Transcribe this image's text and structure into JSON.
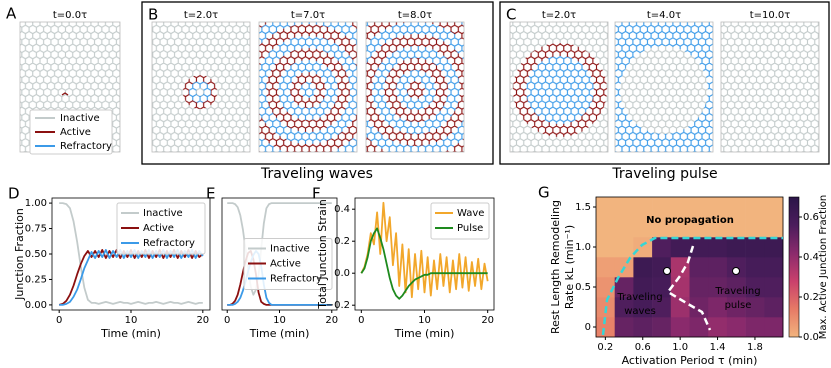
{
  "panels": [
    {
      "label": "A",
      "snapshots": [
        "t=0.0τ"
      ]
    },
    {
      "label": "B",
      "snapshots": [
        "t=2.0τ",
        "t=7.0τ",
        "t=8.0τ"
      ],
      "caption": "Traveling waves"
    },
    {
      "label": "C",
      "snapshots": [
        "t=2.0τ",
        "t=4.0τ",
        "t=10.0τ"
      ],
      "caption": "Traveling pulse"
    }
  ],
  "states": [
    {
      "name": "Inactive",
      "color": "#c3cbcb"
    },
    {
      "name": "Active",
      "color": "#8b1010"
    },
    {
      "name": "Refractory",
      "color": "#3b9ae8"
    }
  ],
  "chart_data": [
    {
      "type": "line",
      "panel_label": "D",
      "xlabel": "Time (min)",
      "ylabel": "Junction Fraction",
      "xlim": [
        -1,
        21
      ],
      "ylim": [
        -0.05,
        1.05
      ],
      "xticks": [
        0,
        10,
        20
      ],
      "yticks": [
        {
          "value": 0,
          "label": "0.00"
        },
        0.25,
        {
          "value": 0.5,
          "label": "0.50"
        },
        0.75,
        {
          "value": 1,
          "label": "1.00"
        }
      ],
      "legend": "upper right",
      "x": [
        0,
        0.5,
        1,
        1.5,
        2,
        2.5,
        3,
        3.5,
        4,
        4.5,
        5,
        5.5,
        6,
        6.5,
        7,
        7.5,
        8,
        8.5,
        9,
        9.5,
        10,
        10.5,
        11,
        11.5,
        12,
        12.5,
        13,
        13.5,
        14,
        14.5,
        15,
        15.5,
        16,
        16.5,
        17,
        17.5,
        18,
        18.5,
        19,
        19.5,
        20
      ],
      "series": [
        {
          "name": "Inactive",
          "color": "#c3cbcb",
          "values": [
            1,
            1,
            0.99,
            0.95,
            0.82,
            0.62,
            0.38,
            0.17,
            0.05,
            0.02,
            0.02,
            0.01,
            0.02,
            0.03,
            0.02,
            0.01,
            0.02,
            0.03,
            0.02,
            0.02,
            0.01,
            0.02,
            0.03,
            0.02,
            0.01,
            0.02,
            0.02,
            0.03,
            0.02,
            0.01,
            0.02,
            0.03,
            0.02,
            0.02,
            0.01,
            0.02,
            0.03,
            0.02,
            0.01,
            0.02,
            0.02
          ]
        },
        {
          "name": "Active",
          "color": "#8b1010",
          "values": [
            0,
            0.01,
            0.04,
            0.1,
            0.19,
            0.3,
            0.4,
            0.48,
            0.53,
            0.47,
            0.53,
            0.47,
            0.54,
            0.46,
            0.53,
            0.47,
            0.54,
            0.46,
            0.53,
            0.47,
            0.54,
            0.46,
            0.53,
            0.47,
            0.54,
            0.46,
            0.53,
            0.47,
            0.54,
            0.46,
            0.53,
            0.47,
            0.54,
            0.46,
            0.53,
            0.47,
            0.54,
            0.46,
            0.53,
            0.47,
            0.5
          ]
        },
        {
          "name": "Refractory",
          "color": "#3b9ae8",
          "values": [
            0,
            0,
            0.01,
            0.03,
            0.08,
            0.15,
            0.25,
            0.36,
            0.44,
            0.52,
            0.46,
            0.53,
            0.47,
            0.54,
            0.46,
            0.53,
            0.47,
            0.54,
            0.46,
            0.53,
            0.47,
            0.54,
            0.46,
            0.53,
            0.47,
            0.54,
            0.46,
            0.53,
            0.47,
            0.54,
            0.46,
            0.53,
            0.47,
            0.54,
            0.46,
            0.53,
            0.47,
            0.54,
            0.46,
            0.53,
            0.48
          ]
        }
      ]
    },
    {
      "type": "line",
      "panel_label": "E",
      "xlabel": "Time (min)",
      "xlim": [
        -1,
        21
      ],
      "ylim": [
        -0.05,
        1.05
      ],
      "xticks": [
        0,
        10,
        20
      ],
      "legend": "center right",
      "x": [
        0,
        0.5,
        1,
        1.5,
        2,
        2.5,
        3,
        3.5,
        4,
        4.5,
        5,
        5.5,
        6,
        6.5,
        7,
        7.5,
        8,
        8.5,
        9,
        9.5,
        10,
        10.5,
        11,
        11.5,
        12,
        12.5,
        13,
        13.5,
        14,
        14.5,
        15,
        15.5,
        16,
        16.5,
        17,
        17.5,
        18,
        18.5,
        19,
        19.5,
        20
      ],
      "series": [
        {
          "name": "Inactive",
          "color": "#c3cbcb",
          "values": [
            1,
            1,
            1,
            0.99,
            0.96,
            0.88,
            0.74,
            0.55,
            0.35,
            0.18,
            0.1,
            0.15,
            0.3,
            0.55,
            0.8,
            0.95,
            0.99,
            1,
            1,
            1,
            1,
            1,
            1,
            1,
            1,
            1,
            1,
            1,
            1,
            1,
            1,
            1,
            1,
            1,
            1,
            1,
            1,
            1,
            1,
            1,
            1
          ]
        },
        {
          "name": "Active",
          "color": "#8b1010",
          "values": [
            0,
            0,
            0.01,
            0.04,
            0.1,
            0.2,
            0.32,
            0.43,
            0.51,
            0.53,
            0.45,
            0.3,
            0.12,
            0.03,
            0.01,
            0,
            0,
            0,
            0,
            0,
            0,
            0,
            0,
            0,
            0,
            0,
            0,
            0,
            0,
            0,
            0,
            0,
            0,
            0,
            0,
            0,
            0,
            0,
            0,
            0,
            0
          ]
        },
        {
          "name": "Refractory",
          "color": "#3b9ae8",
          "values": [
            0,
            0,
            0,
            0.01,
            0.03,
            0.07,
            0.14,
            0.23,
            0.33,
            0.42,
            0.49,
            0.53,
            0.5,
            0.38,
            0.2,
            0.07,
            0.02,
            0,
            0,
            0,
            0,
            0,
            0,
            0,
            0,
            0,
            0,
            0,
            0,
            0,
            0,
            0,
            0,
            0,
            0,
            0,
            0,
            0,
            0,
            0,
            0
          ]
        }
      ]
    },
    {
      "type": "line",
      "panel_label": "F",
      "xlabel": "Time (min)",
      "ylabel": "Total Junction Strain",
      "xlim": [
        -1,
        21
      ],
      "ylim": [
        -0.23,
        0.47
      ],
      "xticks": [
        0,
        10,
        20
      ],
      "yticks": [
        {
          "value": -0.2,
          "label": "−0.2"
        },
        {
          "value": 0,
          "label": "0.0"
        },
        0.2,
        0.4
      ],
      "legend": "upper right",
      "x": [
        0,
        0.5,
        1,
        1.5,
        2,
        2.5,
        3,
        3.5,
        4,
        4.5,
        5,
        5.5,
        6,
        6.5,
        7,
        7.5,
        8,
        8.5,
        9,
        9.5,
        10,
        10.5,
        11,
        11.5,
        12,
        12.5,
        13,
        13.5,
        14,
        14.5,
        15,
        15.5,
        16,
        16.5,
        17,
        17.5,
        18,
        18.5,
        19,
        19.5,
        20
      ],
      "series": [
        {
          "name": "Wave",
          "color": "#f2a72b",
          "values": [
            0,
            0.04,
            0.12,
            0.25,
            0.18,
            0.38,
            0.12,
            0.44,
            0.2,
            0.35,
            0.05,
            0.25,
            -0.08,
            0.18,
            -0.12,
            0.15,
            -0.15,
            0.12,
            -0.1,
            0.14,
            -0.12,
            0.1,
            -0.14,
            0.08,
            -0.1,
            0.12,
            -0.08,
            0.1,
            -0.12,
            0.08,
            -0.1,
            0.12,
            -0.09,
            0.1,
            -0.11,
            0.07,
            -0.08,
            0.09,
            -0.1,
            0.06,
            -0.05
          ]
        },
        {
          "name": "Pulse",
          "color": "#1e8a1e",
          "values": [
            0,
            0.03,
            0.1,
            0.2,
            0.25,
            0.28,
            0.22,
            0.15,
            0.06,
            -0.03,
            -0.1,
            -0.14,
            -0.16,
            -0.14,
            -0.11,
            -0.08,
            -0.06,
            -0.04,
            -0.03,
            -0.02,
            -0.01,
            -0.01,
            0,
            0,
            0,
            0,
            0,
            0,
            0,
            0,
            0,
            0,
            0,
            0,
            0,
            0,
            0,
            0,
            0,
            0,
            0
          ]
        }
      ]
    },
    {
      "type": "heatmap",
      "panel_label": "G",
      "xlabel": "Activation Period τ (min)",
      "ylabel": [
        "Rest Length Remodeling",
        "Rate kL (min⁻¹)"
      ],
      "colorbar_label": "Max. Active Junction Fraction",
      "xlim": [
        0.1,
        2.1
      ],
      "ylim": [
        -0.125,
        1.625
      ],
      "xticks": [
        0.2,
        0.6,
        {
          "value": 1,
          "label": "1.0"
        },
        1.4,
        1.8
      ],
      "yticks": [
        0,
        0.5,
        {
          "value": 1,
          "label": "1.0"
        },
        1.5
      ],
      "clim": [
        0,
        0.7
      ],
      "cticks": [
        {
          "value": 0,
          "label": "0.0"
        },
        0.2,
        0.4,
        0.6
      ],
      "colormap": [
        "#f2b47e",
        "#e67a66",
        "#c9406c",
        "#8a2a6c",
        "#4b1d5c",
        "#2b1548"
      ],
      "x": [
        0.2,
        0.4,
        0.6,
        0.8,
        1,
        1.2,
        1.4,
        1.6,
        1.8,
        2
      ],
      "y": [
        0,
        0.25,
        0.5,
        0.75,
        1,
        1.25,
        1.5
      ],
      "values": [
        [
          0.12,
          0.5,
          0.52,
          0.5,
          0.42,
          0.45,
          0.4,
          0.42,
          0.45,
          0.45
        ],
        [
          0.1,
          0.55,
          0.58,
          0.55,
          0.38,
          0.48,
          0.45,
          0.48,
          0.5,
          0.52
        ],
        [
          0.08,
          0.5,
          0.6,
          0.58,
          0.36,
          0.5,
          0.5,
          0.52,
          0.55,
          0.55
        ],
        [
          0.05,
          0.05,
          0.62,
          0.6,
          0.35,
          0.52,
          0.52,
          0.55,
          0.58,
          0.58
        ],
        [
          0,
          0,
          0.02,
          0.55,
          0.6,
          0.6,
          0.6,
          0.62,
          0.62,
          0.62
        ],
        [
          0,
          0,
          0,
          0,
          0,
          0,
          0,
          0,
          0,
          0
        ],
        [
          0,
          0,
          0,
          0,
          0,
          0,
          0,
          0,
          0,
          0
        ]
      ],
      "annotations": [
        {
          "lines": [
            "No propagation"
          ]
        },
        {
          "lines": [
            "Traveling",
            "waves"
          ]
        },
        {
          "lines": [
            "Traveling",
            "pulse"
          ]
        }
      ]
    }
  ]
}
